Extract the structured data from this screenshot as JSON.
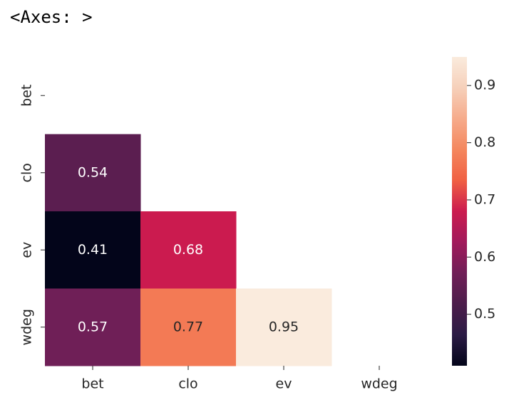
{
  "output_text": "<Axes: >",
  "chart_data": {
    "type": "heatmap",
    "colormap": "rocket",
    "x_categories": [
      "bet",
      "clo",
      "ev",
      "wdeg"
    ],
    "y_categories": [
      "bet",
      "clo",
      "ev",
      "wdeg"
    ],
    "values": [
      [
        null,
        null,
        null,
        null
      ],
      [
        0.54,
        null,
        null,
        null
      ],
      [
        0.41,
        0.68,
        null,
        null
      ],
      [
        0.57,
        0.77,
        0.95,
        null
      ]
    ],
    "colorbar_lim": [
      0.41,
      0.95
    ],
    "colorbar_ticks": [
      0.5,
      0.6,
      0.7,
      0.8,
      0.9
    ]
  }
}
